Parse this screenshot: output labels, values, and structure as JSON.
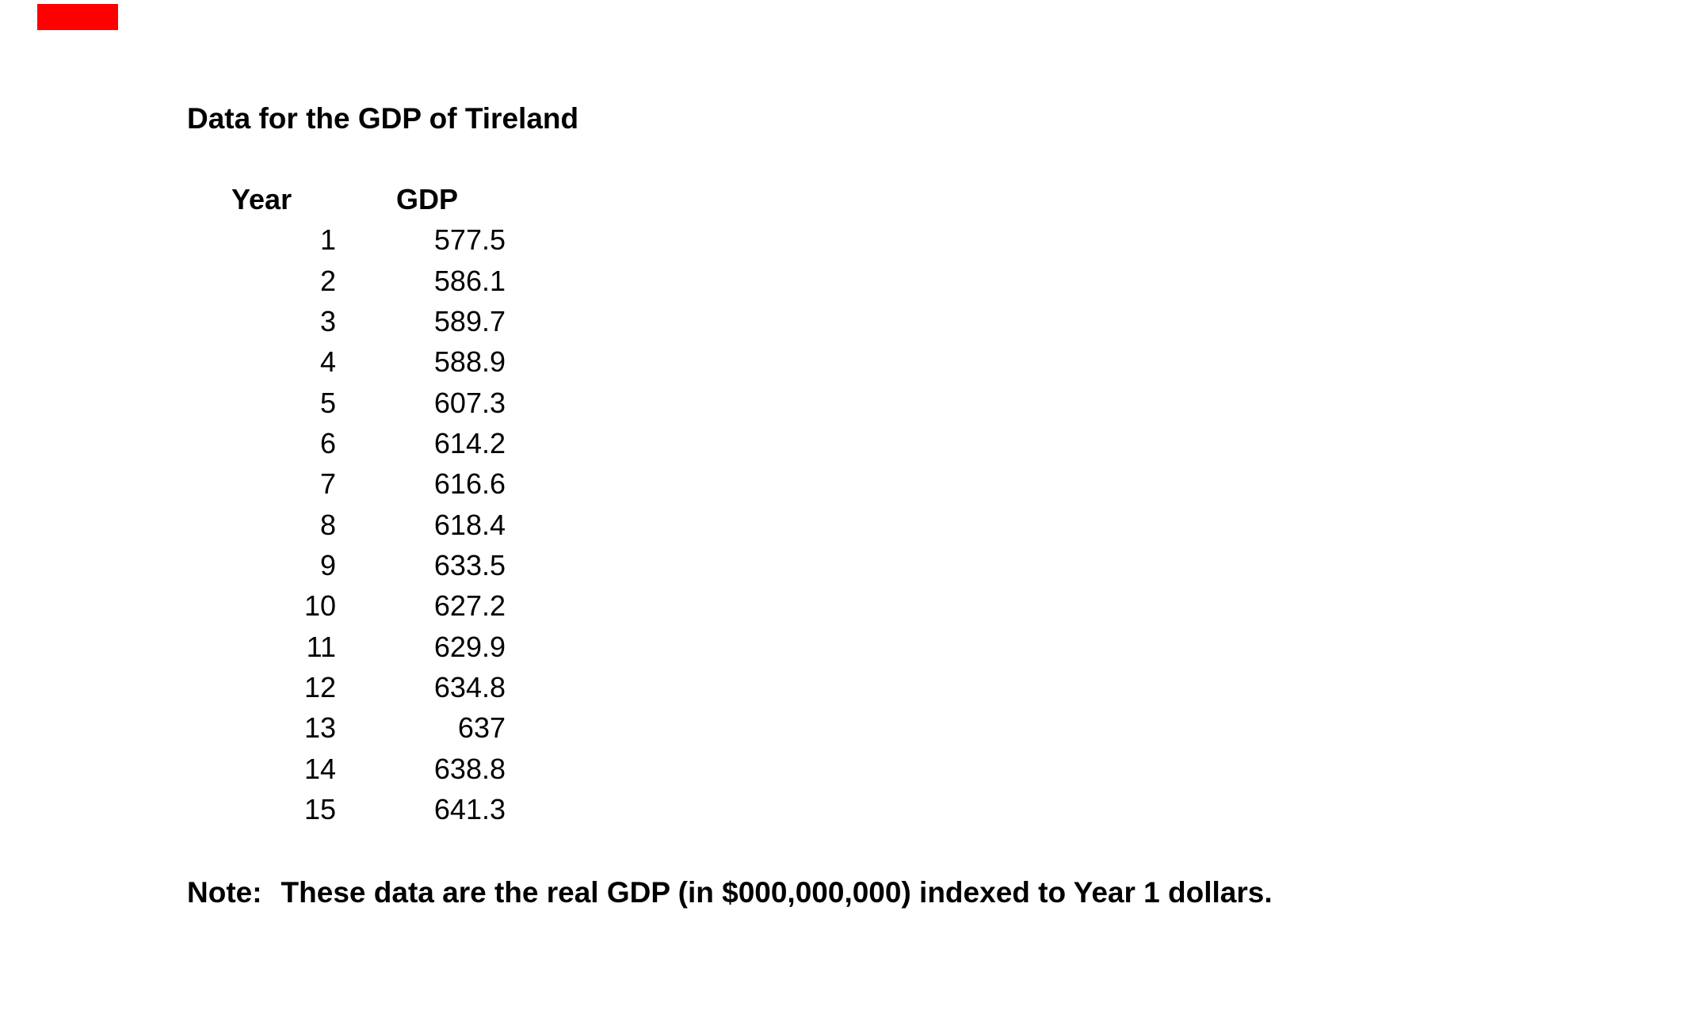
{
  "colors": {
    "background": "#ffffff",
    "text": "#000000",
    "marker_red": "#fe0000"
  },
  "title": "Data for the GDP of Tireland",
  "table": {
    "columns": [
      "Year",
      "GDP"
    ],
    "rows": [
      [
        "1",
        "577.5"
      ],
      [
        "2",
        "586.1"
      ],
      [
        "3",
        "589.7"
      ],
      [
        "4",
        "588.9"
      ],
      [
        "5",
        "607.3"
      ],
      [
        "6",
        "614.2"
      ],
      [
        "7",
        "616.6"
      ],
      [
        "8",
        "618.4"
      ],
      [
        "9",
        "633.5"
      ],
      [
        "10",
        "627.2"
      ],
      [
        "11",
        "629.9"
      ],
      [
        "12",
        "634.8"
      ],
      [
        "13",
        "637"
      ],
      [
        "14",
        "638.8"
      ],
      [
        "15",
        "641.3"
      ]
    ]
  },
  "note": {
    "label": "Note:",
    "body": "These data are the real GDP (in $000,000,000) indexed to Year 1 dollars."
  }
}
